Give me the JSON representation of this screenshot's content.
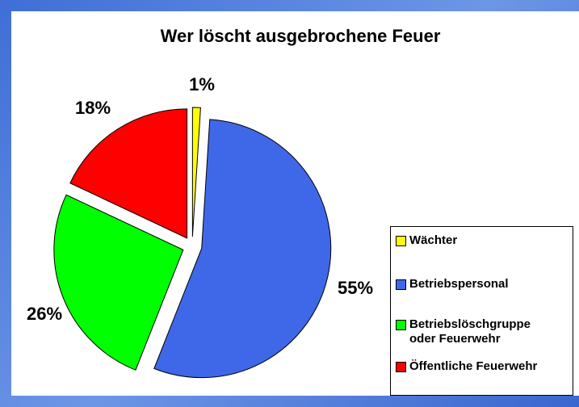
{
  "chart_data": {
    "type": "pie",
    "title": "Wer löscht ausgebrochene Feuer",
    "categories": [
      "Wächter",
      "Betriebspersonal",
      "Betriebslöschgruppe oder Feuerwehr",
      "Öffentliche Feuerwehr"
    ],
    "values": [
      1,
      55,
      26,
      18
    ],
    "value_labels": [
      "1%",
      "55%",
      "26%",
      "18%"
    ],
    "colors": [
      "#ffff00",
      "#3f68e8",
      "#00ff00",
      "#ff0000"
    ]
  }
}
